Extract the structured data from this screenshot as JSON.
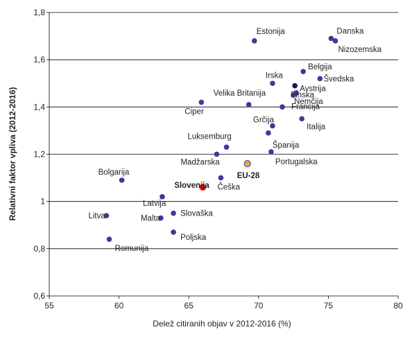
{
  "chart_data": {
    "type": "scatter",
    "xlabel": "Delež citiranih objav v 2012-2016 (%)",
    "ylabel": "Relativni faktor vpliva (2012-2016)",
    "xlim": [
      55,
      80
    ],
    "ylim": [
      0.6,
      1.8
    ],
    "x_ticks": [
      "55",
      "60",
      "65",
      "70",
      "75",
      "80"
    ],
    "y_ticks": [
      "0,6",
      "0,8",
      "1",
      "1,2",
      "1,4",
      "1,6",
      "1,8"
    ],
    "grid": "horizontal",
    "colors": {
      "default": "#3b3b96",
      "highlight": "#ee1111",
      "eu": "#f0a830",
      "eu_edge": "#5a6fb0",
      "austria": "#15156a",
      "grid": "#000000"
    },
    "points": [
      {
        "name": "Danska",
        "x": 75.2,
        "y": 1.69
      },
      {
        "name": "Nizozemska",
        "x": 75.5,
        "y": 1.68
      },
      {
        "name": "Estonija",
        "x": 69.7,
        "y": 1.68
      },
      {
        "name": "Belgija",
        "x": 73.2,
        "y": 1.55
      },
      {
        "name": "Švedska",
        "x": 74.4,
        "y": 1.52
      },
      {
        "name": "Irska",
        "x": 71.0,
        "y": 1.5
      },
      {
        "name": "Avstrija",
        "x": 72.6,
        "y": 1.49
      },
      {
        "name": "Nemčija",
        "x": 72.7,
        "y": 1.46
      },
      {
        "name": "Finska",
        "x": 72.5,
        "y": 1.45
      },
      {
        "name": "Velika Britanija",
        "x": 69.3,
        "y": 1.41
      },
      {
        "name": "Francija",
        "x": 71.7,
        "y": 1.4
      },
      {
        "name": "Ciper",
        "x": 65.9,
        "y": 1.42
      },
      {
        "name": "Italija",
        "x": 73.1,
        "y": 1.35
      },
      {
        "name": "Grčija",
        "x": 71.0,
        "y": 1.32
      },
      {
        "name": "Španija",
        "x": 70.7,
        "y": 1.29
      },
      {
        "name": "Luksemburg",
        "x": 67.7,
        "y": 1.23
      },
      {
        "name": "Portugalska",
        "x": 70.9,
        "y": 1.21
      },
      {
        "name": "Madžarska",
        "x": 67.0,
        "y": 1.2
      },
      {
        "name": "EU-28",
        "x": 69.2,
        "y": 1.16
      },
      {
        "name": "Češka",
        "x": 67.3,
        "y": 1.1
      },
      {
        "name": "Bolgarija",
        "x": 60.2,
        "y": 1.09
      },
      {
        "name": "Slovenija",
        "x": 66.0,
        "y": 1.06
      },
      {
        "name": "Latvija",
        "x": 63.1,
        "y": 1.02
      },
      {
        "name": "Slovaška",
        "x": 63.9,
        "y": 0.95
      },
      {
        "name": "Litva",
        "x": 59.1,
        "y": 0.94
      },
      {
        "name": "Malta",
        "x": 63.0,
        "y": 0.93
      },
      {
        "name": "Poljska",
        "x": 63.9,
        "y": 0.87
      },
      {
        "name": "Romunija",
        "x": 59.3,
        "y": 0.84
      }
    ]
  }
}
